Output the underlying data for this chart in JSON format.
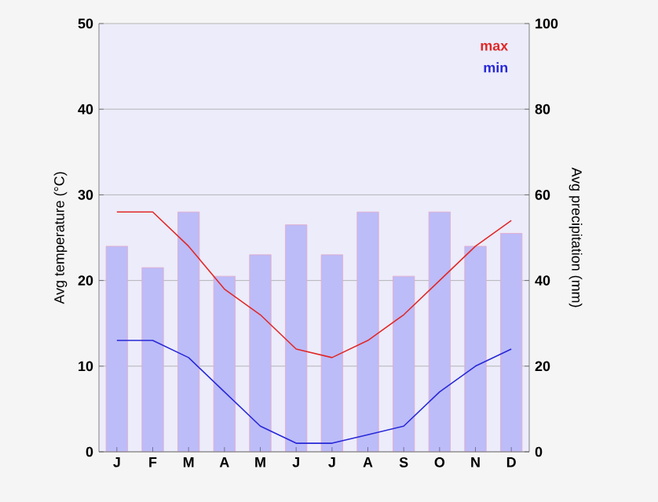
{
  "chart_data": {
    "type": "line",
    "categories": [
      "J",
      "F",
      "M",
      "A",
      "M",
      "J",
      "J",
      "A",
      "S",
      "O",
      "N",
      "D"
    ],
    "series": [
      {
        "type": "bar",
        "axis": "y2",
        "color": "#bcbcf8",
        "values": [
          48,
          43,
          56,
          41,
          46,
          53,
          46,
          56,
          41,
          56,
          48,
          51
        ]
      },
      {
        "name": "max",
        "color": "#e02828",
        "values": [
          28,
          28,
          24,
          19,
          16,
          12,
          11,
          13,
          16,
          20,
          24,
          27
        ]
      },
      {
        "name": "min",
        "color": "#2828d8",
        "values": [
          13,
          13,
          11,
          7,
          3,
          1,
          1,
          2,
          3,
          7,
          10,
          12
        ]
      }
    ],
    "ylabel": "Avg temperature (°C)",
    "y2label": "Avg precipitation (mm)",
    "ylim": [
      0,
      50
    ],
    "yticks": [
      0,
      10,
      20,
      30,
      40,
      50
    ],
    "y2lim": [
      0,
      100
    ],
    "y2ticks": [
      0,
      20,
      40,
      60,
      80,
      100
    ],
    "grid": "y",
    "legend": "top right",
    "marker": "none",
    "line_style": "solid"
  }
}
